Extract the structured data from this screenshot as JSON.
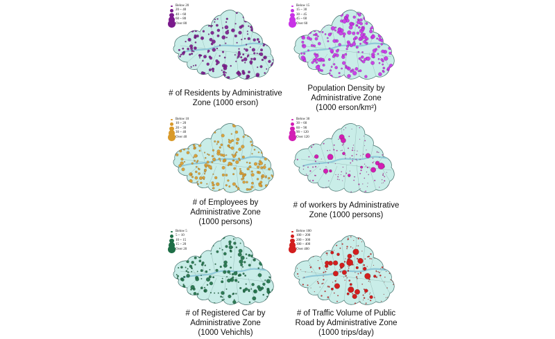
{
  "colors": {
    "land": "#c9ede8",
    "border": "#3d6b66",
    "outside": "#ffffff"
  },
  "maps": [
    {
      "id": "residents",
      "symbol_color": "#7a1a8c",
      "legend": [
        "Below 20",
        "20 ~ 40",
        "40 ~ 60",
        "60 ~ 80",
        "Over 80"
      ],
      "caption": [
        "# of Residents by Administrative",
        "Zone (1000 erson)"
      ]
    },
    {
      "id": "population-density",
      "symbol_color": "#c832e6",
      "legend": [
        "Below 15",
        "15 ~ 30",
        "30 ~ 45",
        "45 ~ 60",
        "Over 60"
      ],
      "caption": [
        "Population Density by",
        "Administrative Zone",
        "(1000 erson/km²)"
      ]
    },
    {
      "id": "employees",
      "symbol_color": "#d99a2b",
      "legend": [
        "Below 10",
        "10 ~ 20",
        "20 ~ 30",
        "30 ~ 40",
        "Over 40"
      ],
      "caption": [
        "# of Employees by",
        "Administrative Zone",
        "(1000 persons)"
      ]
    },
    {
      "id": "workers",
      "symbol_color": "#d21eb4",
      "legend": [
        "Below 30",
        "30 ~ 60",
        "60 ~ 90",
        "90 ~ 120",
        "Over 120"
      ],
      "caption": [
        "# of workers by Administrative",
        "Zone (1000 persons)"
      ]
    },
    {
      "id": "registered-car",
      "symbol_color": "#1e6e46",
      "legend": [
        "Below 5",
        "5 ~ 10",
        "10 ~ 15",
        "15 ~ 20",
        "Over 20"
      ],
      "caption": [
        "# of Registered Car by",
        "Administrative Zone",
        "(1000 Vehichls)"
      ]
    },
    {
      "id": "traffic-volume",
      "symbol_color": "#d21e1e",
      "legend": [
        "Below 100",
        "100 ~ 200",
        "200 ~ 300",
        "300 ~ 400",
        "Over 400"
      ],
      "caption": [
        "# of Traffic Volume of Public",
        "Road by Administrative Zone",
        "(1000 trips/day)"
      ]
    }
  ]
}
